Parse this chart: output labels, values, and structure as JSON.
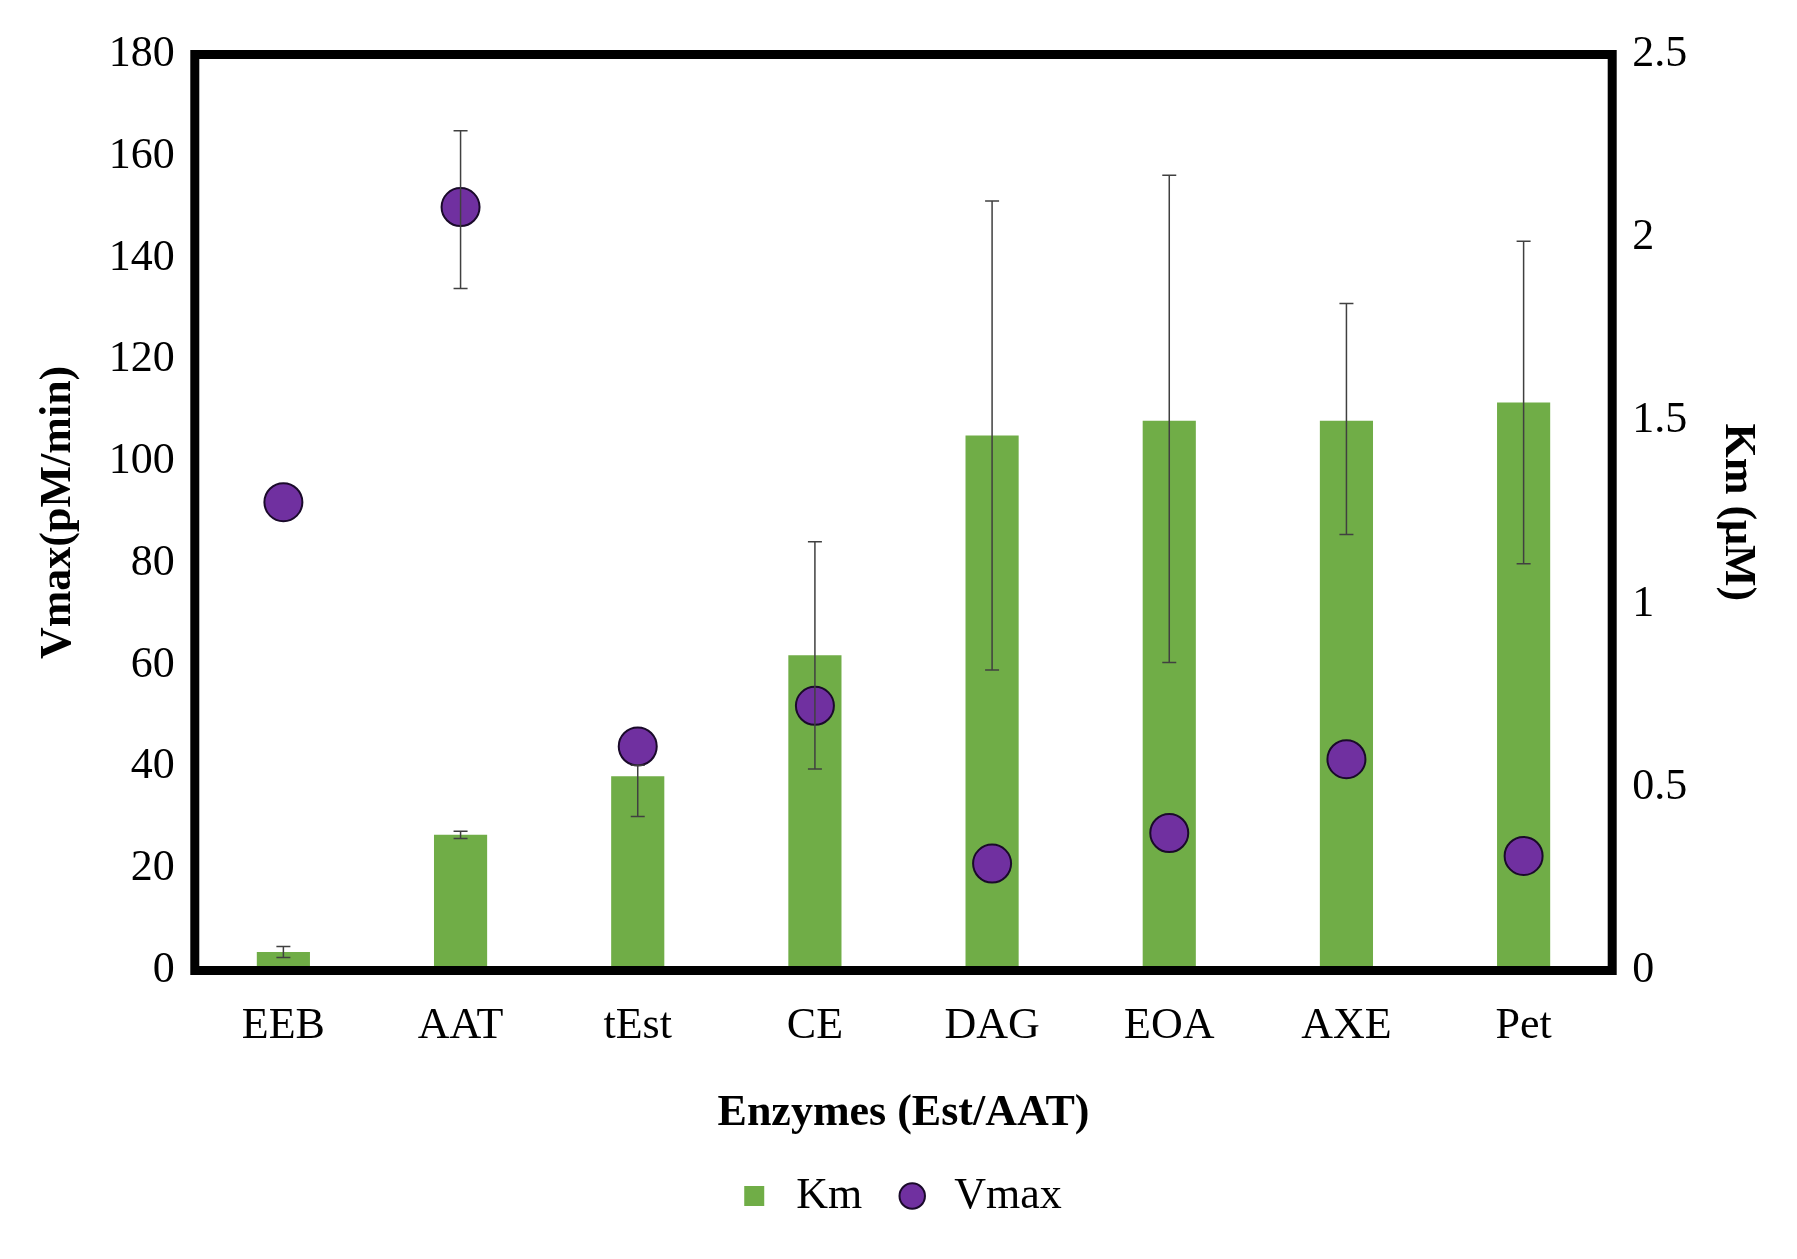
{
  "chart_data": {
    "type": "bar",
    "xlabel": "Enzymes (Est/AAT)",
    "ylabel": "Vmax(pM/min)",
    "y2label": "Km (μM)",
    "categories": [
      "EEB",
      "AAT",
      "tEst",
      "CE",
      "DAG",
      "EOA",
      "AXE",
      "Pet"
    ],
    "series": [
      {
        "name": "Km",
        "axis": "y2",
        "color": "#70ad47",
        "values": [
          0.05,
          0.37,
          0.53,
          0.86,
          1.46,
          1.5,
          1.5,
          1.55
        ],
        "errors": [
          0.015,
          0.01,
          [
            0.42,
            0.56
          ],
          [
            0.55,
            1.17
          ],
          [
            0.82,
            2.1
          ],
          [
            0.84,
            2.17
          ],
          [
            1.19,
            1.82
          ],
          [
            1.11,
            1.99
          ]
        ]
      },
      {
        "name": "Vmax",
        "type": "scatter",
        "axis": "y",
        "color": "#7030a0",
        "values": [
          92,
          150,
          44,
          52,
          21,
          27,
          41.5,
          22.5
        ],
        "errors": [
          null,
          [
            134,
            165
          ],
          null,
          null,
          null,
          null,
          null,
          null
        ]
      }
    ],
    "ylim": [
      0,
      180
    ],
    "yticks": [
      0,
      20,
      40,
      60,
      80,
      100,
      120,
      140,
      160,
      180
    ],
    "y2lim": [
      0,
      2.5
    ],
    "y2ticks": [
      0,
      0.5,
      1,
      1.5,
      2,
      2.5
    ],
    "legend": "bottom",
    "marker": "circle",
    "grid": false
  }
}
